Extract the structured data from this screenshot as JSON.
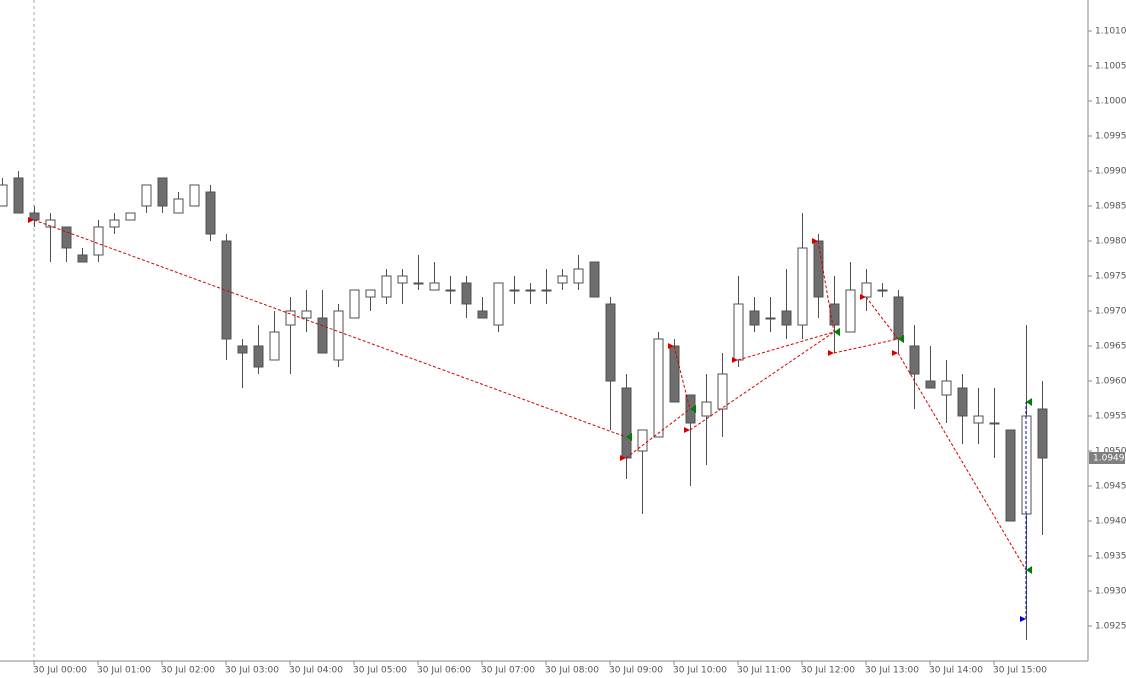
{
  "chart_data": {
    "type": "candlestick",
    "categories": [
      null,
      null,
      "30 Jul 00:00",
      null,
      null,
      null,
      "30 Jul 01:00",
      null,
      null,
      null,
      "30 Jul 02:00",
      null,
      null,
      null,
      "30 Jul 03:00",
      null,
      null,
      null,
      "30 Jul 04:00",
      null,
      null,
      null,
      "30 Jul 05:00",
      null,
      null,
      null,
      "30 Jul 06:00",
      null,
      null,
      null,
      "30 Jul 07:00",
      null,
      null,
      null,
      "30 Jul 08:00",
      null,
      null,
      null,
      "30 Jul 09:00",
      null,
      null,
      null,
      "30 Jul 10:00",
      null,
      null,
      null,
      "30 Jul 11:00",
      null,
      null,
      null,
      "30 Jul 12:00",
      null,
      null,
      null,
      "30 Jul 13:00",
      null,
      null,
      null,
      "30 Jul 14:00",
      null,
      null,
      null,
      "30 Jul 15:00",
      null,
      null,
      null
    ],
    "open": [
      1.0985,
      1.0989,
      1.0984,
      1.0982,
      1.0982,
      1.0978,
      1.0978,
      1.0982,
      1.0983,
      1.0985,
      1.0989,
      1.0984,
      1.0985,
      1.0987,
      1.098,
      1.0965,
      1.0965,
      1.0963,
      1.0968,
      1.0969,
      1.0969,
      1.0963,
      1.0969,
      1.0972,
      1.0972,
      1.0974,
      1.0974,
      1.0973,
      1.0973,
      1.0974,
      1.097,
      1.0968,
      1.0973,
      1.0973,
      1.0973,
      1.0974,
      1.0974,
      1.0977,
      1.0971,
      1.0959,
      1.095,
      1.0952,
      1.0965,
      1.0958,
      1.0955,
      1.0956,
      1.0963,
      1.097,
      1.0969,
      1.097,
      1.0968,
      1.098,
      1.0971,
      1.0967,
      1.0972,
      1.0973,
      1.0972,
      1.0965,
      1.096,
      1.0958,
      1.0959,
      1.0954,
      1.0954,
      1.0953,
      1.0941,
      1.0956
    ],
    "high": [
      1.0989,
      1.099,
      1.0985,
      1.0984,
      1.0982,
      1.0979,
      1.0983,
      1.0984,
      1.0984,
      1.0988,
      1.0989,
      1.0987,
      1.0988,
      1.0988,
      1.0981,
      1.0966,
      1.0968,
      1.097,
      1.0972,
      1.0973,
      1.0973,
      1.0971,
      1.0973,
      1.0973,
      1.0976,
      1.0976,
      1.0978,
      1.0977,
      1.0975,
      1.0975,
      1.0972,
      1.0974,
      1.0975,
      1.0974,
      1.0976,
      1.0976,
      1.0978,
      1.0977,
      1.0972,
      1.0961,
      1.0953,
      1.0967,
      1.0966,
      1.0958,
      1.0961,
      1.0964,
      1.0975,
      1.0972,
      1.0972,
      1.0976,
      1.0984,
      1.0981,
      1.0975,
      1.0977,
      1.0976,
      1.0974,
      1.0973,
      1.0968,
      1.0965,
      1.0963,
      1.0961,
      1.0959,
      1.0959,
      1.0953,
      1.0968,
      1.096
    ],
    "low": [
      1.0985,
      1.0984,
      1.0982,
      1.0977,
      1.0977,
      1.0977,
      1.0977,
      1.0981,
      1.0983,
      1.0984,
      1.0984,
      1.0984,
      1.0985,
      1.098,
      1.0963,
      1.0959,
      1.0961,
      1.0963,
      1.0961,
      1.0967,
      1.0964,
      1.0962,
      1.0969,
      1.097,
      1.0971,
      1.0971,
      1.0973,
      1.0973,
      1.0971,
      1.0969,
      1.0969,
      1.0967,
      1.0971,
      1.0971,
      1.0971,
      1.0973,
      1.0973,
      1.0972,
      1.0953,
      1.0946,
      1.0941,
      1.0952,
      1.0957,
      1.0945,
      1.0948,
      1.0952,
      1.0962,
      1.0967,
      1.0967,
      1.0966,
      1.0966,
      1.0969,
      1.0964,
      1.0967,
      1.097,
      1.0972,
      1.0964,
      1.0956,
      1.0959,
      1.0954,
      1.0951,
      1.0951,
      1.0949,
      1.094,
      1.0923,
      1.0938
    ],
    "close": [
      1.0988,
      1.0984,
      1.0983,
      1.0983,
      1.0979,
      1.0977,
      1.0982,
      1.0983,
      1.0984,
      1.0988,
      1.0985,
      1.0986,
      1.0988,
      1.0981,
      1.0966,
      1.0964,
      1.0962,
      1.0967,
      1.097,
      1.097,
      1.0964,
      1.097,
      1.0973,
      1.0973,
      1.0975,
      1.0975,
      1.0974,
      1.0974,
      1.0973,
      1.0971,
      1.0969,
      1.0974,
      1.0973,
      1.0973,
      1.0973,
      1.0975,
      1.0976,
      1.0972,
      1.096,
      1.0949,
      1.0953,
      1.0966,
      1.0957,
      1.0954,
      1.0957,
      1.0961,
      1.0971,
      1.0968,
      1.0969,
      1.0968,
      1.0979,
      1.0972,
      1.0968,
      1.0973,
      1.0974,
      1.0973,
      1.0966,
      1.0961,
      1.0959,
      1.096,
      1.0955,
      1.0955,
      1.0954,
      1.094,
      1.0955,
      1.0949
    ],
    "up_color": "#ffffff",
    "down_color": "#6e6e6e",
    "wick_color": "#505050",
    "ylim": [
      1.092,
      1.1015
    ],
    "yticks": [
      {
        "value": 1.101,
        "label": "1.1010"
      },
      {
        "value": 1.1005,
        "label": "1.1005"
      },
      {
        "value": 1.1,
        "label": "1.1000"
      },
      {
        "value": 1.0995,
        "label": "1.0995"
      },
      {
        "value": 1.099,
        "label": "1.0990"
      },
      {
        "value": 1.0985,
        "label": "1.0985"
      },
      {
        "value": 1.098,
        "label": "1.0980"
      },
      {
        "value": 1.0975,
        "label": "1.0975"
      },
      {
        "value": 1.097,
        "label": "1.0970"
      },
      {
        "value": 1.0965,
        "label": "1.0965"
      },
      {
        "value": 1.096,
        "label": "1.0960"
      },
      {
        "value": 1.0955,
        "label": "1.0955"
      },
      {
        "value": 1.095,
        "label": "1.0950"
      },
      {
        "value": 1.0945,
        "label": "1.0945"
      },
      {
        "value": 1.094,
        "label": "1.0940"
      },
      {
        "value": 1.0935,
        "label": "1.0935"
      },
      {
        "value": 1.093,
        "label": "1.0930"
      },
      {
        "value": 1.0925,
        "label": "1.0925"
      }
    ],
    "last_price": {
      "value": 1.0949,
      "label": "1.0949"
    },
    "trades": [
      {
        "entry_index": 2,
        "entry_price": 1.0983,
        "exit_index": 39,
        "exit_price": 1.0952,
        "color": "#d40000"
      },
      {
        "entry_index": 39,
        "entry_price": 1.0949,
        "exit_index": 43,
        "exit_price": 1.0956,
        "color": "#d40000"
      },
      {
        "entry_index": 42,
        "entry_price": 1.0965,
        "exit_index": 43,
        "exit_price": 1.0956,
        "color": "#d40000"
      },
      {
        "entry_index": 43,
        "entry_price": 1.0953,
        "exit_index": 52,
        "exit_price": 1.0967,
        "color": "#d40000"
      },
      {
        "entry_index": 46,
        "entry_price": 1.0963,
        "exit_index": 52,
        "exit_price": 1.0967,
        "color": "#d40000"
      },
      {
        "entry_index": 51,
        "entry_price": 1.098,
        "exit_index": 52,
        "exit_price": 1.0967,
        "color": "#d40000"
      },
      {
        "entry_index": 52,
        "entry_price": 1.0964,
        "exit_index": 56,
        "exit_price": 1.0966,
        "color": "#d40000"
      },
      {
        "entry_index": 54,
        "entry_price": 1.0972,
        "exit_index": 56,
        "exit_price": 1.0966,
        "color": "#d40000"
      },
      {
        "entry_index": 56,
        "entry_price": 1.0964,
        "exit_index": 64,
        "exit_price": 1.0933,
        "color": "#d40000"
      },
      {
        "entry_index": 64,
        "entry_price": 1.0926,
        "exit_index": 64,
        "exit_price": 1.0957,
        "color": "#0000e0"
      }
    ],
    "exit_color": "#008000"
  }
}
